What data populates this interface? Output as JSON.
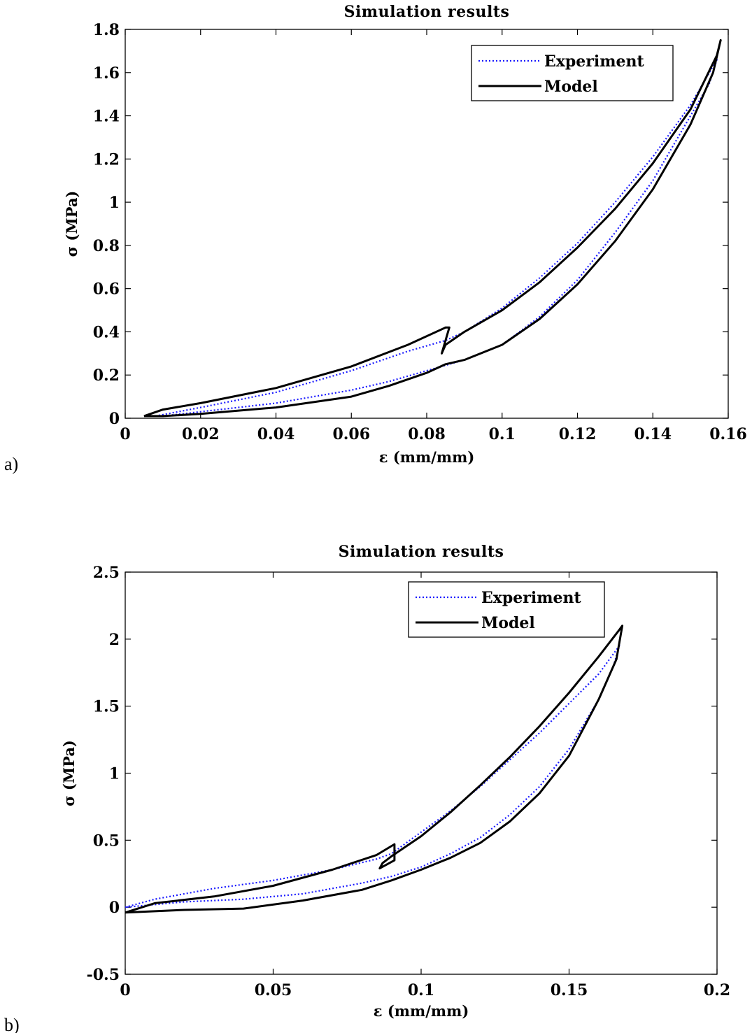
{
  "chart_data": [
    {
      "panel_label": "a)",
      "type": "line",
      "title": "Simulation results",
      "xlabel": "ε (mm/mm)",
      "ylabel": "σ (MPa)",
      "xlim": [
        0,
        0.16
      ],
      "ylim": [
        0,
        1.8
      ],
      "xticks": [
        0,
        0.02,
        0.04,
        0.06,
        0.08,
        0.1,
        0.12,
        0.14,
        0.16
      ],
      "xtick_labels": [
        "0",
        "0.02",
        "0.04",
        "0.06",
        "0.08",
        "0.1",
        "0.12",
        "0.14",
        "0.16"
      ],
      "yticks": [
        0,
        0.2,
        0.4,
        0.6,
        0.8,
        1,
        1.2,
        1.4,
        1.6,
        1.8
      ],
      "ytick_labels": [
        "0",
        "0.2",
        "0.4",
        "0.6",
        "0.8",
        "1",
        "1.2",
        "1.4",
        "1.6",
        "1.8"
      ],
      "grid": false,
      "legend": "top-right",
      "series": [
        {
          "name": "Experiment",
          "style": "dotted",
          "color": "#1a1aff",
          "x": [
            0.008,
            0.02,
            0.04,
            0.06,
            0.075,
            0.085,
            0.09,
            0.1,
            0.11,
            0.12,
            0.13,
            0.14,
            0.15,
            0.157,
            0.155,
            0.15,
            0.14,
            0.13,
            0.12,
            0.11,
            0.1,
            0.09,
            0.085,
            0.08,
            0.07,
            0.06,
            0.04,
            0.02,
            0.01,
            0.008
          ],
          "y": [
            0.01,
            0.05,
            0.12,
            0.22,
            0.31,
            0.36,
            0.4,
            0.51,
            0.65,
            0.81,
            1.0,
            1.21,
            1.45,
            1.66,
            1.55,
            1.4,
            1.1,
            0.86,
            0.64,
            0.47,
            0.34,
            0.27,
            0.245,
            0.22,
            0.17,
            0.13,
            0.07,
            0.03,
            0.01,
            0.01
          ]
        },
        {
          "name": "Model",
          "style": "solid",
          "color": "#000000",
          "x": [
            0.005,
            0.01,
            0.02,
            0.04,
            0.06,
            0.075,
            0.085,
            0.086,
            0.084,
            0.085,
            0.09,
            0.1,
            0.11,
            0.12,
            0.13,
            0.14,
            0.15,
            0.157,
            0.158,
            0.156,
            0.15,
            0.14,
            0.13,
            0.12,
            0.11,
            0.1,
            0.09,
            0.085,
            0.08,
            0.07,
            0.06,
            0.04,
            0.02,
            0.01,
            0.005
          ],
          "y": [
            0.01,
            0.04,
            0.07,
            0.14,
            0.24,
            0.34,
            0.42,
            0.42,
            0.3,
            0.34,
            0.4,
            0.5,
            0.63,
            0.79,
            0.97,
            1.18,
            1.43,
            1.68,
            1.75,
            1.6,
            1.36,
            1.06,
            0.82,
            0.62,
            0.46,
            0.34,
            0.27,
            0.25,
            0.21,
            0.15,
            0.1,
            0.05,
            0.02,
            0.01,
            0.01
          ]
        }
      ]
    },
    {
      "panel_label": "b)",
      "type": "line",
      "title": "Simulation results",
      "xlabel": "ε (mm/mm)",
      "ylabel": "σ (MPa)",
      "xlim": [
        0,
        0.2
      ],
      "ylim": [
        -0.5,
        2.5
      ],
      "xticks": [
        0,
        0.05,
        0.1,
        0.15,
        0.2
      ],
      "xtick_labels": [
        "0",
        "0.05",
        "0.1",
        "0.15",
        "0.2"
      ],
      "yticks": [
        -0.5,
        0,
        0.5,
        1,
        1.5,
        2,
        2.5
      ],
      "ytick_labels": [
        "-0.5",
        "0",
        "0.5",
        "1",
        "1.5",
        "2",
        "2.5"
      ],
      "grid": false,
      "legend": "top-right",
      "series": [
        {
          "name": "Experiment",
          "style": "dotted",
          "color": "#1a1aff",
          "x": [
            0.0,
            0.01,
            0.03,
            0.05,
            0.07,
            0.085,
            0.09,
            0.1,
            0.11,
            0.12,
            0.13,
            0.14,
            0.15,
            0.16,
            0.167,
            0.165,
            0.16,
            0.15,
            0.14,
            0.13,
            0.12,
            0.11,
            0.1,
            0.09,
            0.08,
            0.06,
            0.04,
            0.02,
            0.005,
            0.0
          ],
          "y": [
            0.0,
            0.06,
            0.14,
            0.2,
            0.28,
            0.36,
            0.4,
            0.56,
            0.72,
            0.9,
            1.1,
            1.3,
            1.52,
            1.74,
            1.95,
            1.8,
            1.55,
            1.18,
            0.9,
            0.69,
            0.52,
            0.4,
            0.3,
            0.23,
            0.18,
            0.1,
            0.06,
            0.04,
            0.01,
            0.0
          ]
        },
        {
          "name": "Model",
          "style": "solid",
          "color": "#000000",
          "x": [
            0.0,
            0.01,
            0.03,
            0.05,
            0.07,
            0.085,
            0.091,
            0.091,
            0.086,
            0.087,
            0.09,
            0.1,
            0.11,
            0.12,
            0.13,
            0.14,
            0.15,
            0.16,
            0.167,
            0.168,
            0.166,
            0.16,
            0.15,
            0.14,
            0.13,
            0.12,
            0.11,
            0.1,
            0.09,
            0.08,
            0.06,
            0.04,
            0.02,
            0.01,
            0.0
          ],
          "y": [
            -0.04,
            0.03,
            0.08,
            0.16,
            0.28,
            0.39,
            0.47,
            0.35,
            0.29,
            0.33,
            0.38,
            0.53,
            0.71,
            0.91,
            1.12,
            1.35,
            1.6,
            1.87,
            2.07,
            2.1,
            1.85,
            1.55,
            1.13,
            0.85,
            0.64,
            0.48,
            0.37,
            0.28,
            0.2,
            0.13,
            0.05,
            -0.01,
            -0.02,
            -0.03,
            -0.04
          ]
        }
      ]
    }
  ]
}
